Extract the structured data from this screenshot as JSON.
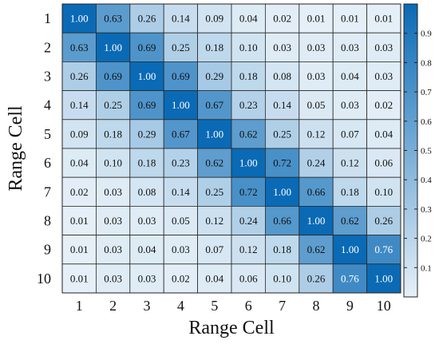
{
  "chart_data": {
    "type": "heatmap",
    "xlabel": "Range Cell",
    "ylabel": "Range Cell",
    "x_categories": [
      "1",
      "2",
      "3",
      "4",
      "5",
      "6",
      "7",
      "8",
      "9",
      "10"
    ],
    "y_categories": [
      "1",
      "2",
      "3",
      "4",
      "5",
      "6",
      "7",
      "8",
      "9",
      "10"
    ],
    "values": [
      [
        1.0,
        0.63,
        0.26,
        0.14,
        0.09,
        0.04,
        0.02,
        0.01,
        0.01,
        0.01
      ],
      [
        0.63,
        1.0,
        0.69,
        0.25,
        0.18,
        0.1,
        0.03,
        0.03,
        0.03,
        0.03
      ],
      [
        0.26,
        0.69,
        1.0,
        0.69,
        0.29,
        0.18,
        0.08,
        0.03,
        0.04,
        0.03
      ],
      [
        0.14,
        0.25,
        0.69,
        1.0,
        0.67,
        0.23,
        0.14,
        0.05,
        0.03,
        0.02
      ],
      [
        0.09,
        0.18,
        0.29,
        0.67,
        1.0,
        0.62,
        0.25,
        0.12,
        0.07,
        0.04
      ],
      [
        0.04,
        0.1,
        0.18,
        0.23,
        0.62,
        1.0,
        0.72,
        0.24,
        0.12,
        0.06
      ],
      [
        0.02,
        0.03,
        0.08,
        0.14,
        0.25,
        0.72,
        1.0,
        0.66,
        0.18,
        0.1
      ],
      [
        0.01,
        0.03,
        0.03,
        0.05,
        0.12,
        0.24,
        0.66,
        1.0,
        0.62,
        0.26
      ],
      [
        0.01,
        0.03,
        0.04,
        0.03,
        0.07,
        0.12,
        0.18,
        0.62,
        1.0,
        0.76
      ],
      [
        0.01,
        0.03,
        0.03,
        0.02,
        0.04,
        0.06,
        0.1,
        0.26,
        0.76,
        1.0
      ]
    ],
    "colorbar": {
      "min": 0,
      "max": 1,
      "ticks": [
        0.1,
        0.2,
        0.3,
        0.4,
        0.5,
        0.6,
        0.7,
        0.8,
        0.9
      ],
      "tick_labels": [
        "0.1",
        "0.2",
        "0.3",
        "0.4",
        "0.5",
        "0.6",
        "0.7",
        "0.8",
        "0.9"
      ],
      "color_low": "#e6f0f8",
      "color_high": "#0a6ab5"
    },
    "grid": true,
    "colorbar_position": "right"
  }
}
